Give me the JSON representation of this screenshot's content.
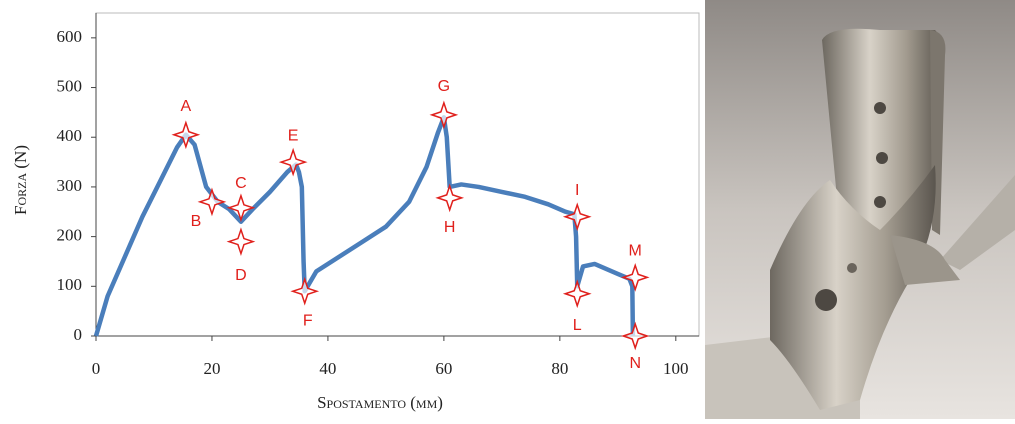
{
  "chart_data": {
    "type": "line",
    "xlabel": "Spostamento (mm)",
    "ylabel": "Forza (N)",
    "xlim": [
      0,
      104
    ],
    "ylim": [
      0,
      650
    ],
    "xticks": [
      0,
      20,
      40,
      60,
      80,
      100
    ],
    "yticks": [
      0,
      100,
      200,
      300,
      400,
      500,
      600
    ],
    "series": [
      {
        "color": "#4a7ebb",
        "x": [
          0,
          2,
          5,
          8,
          11,
          14,
          15.5,
          17,
          19,
          21,
          23,
          25,
          27,
          30,
          33,
          34.5,
          35,
          35.5,
          35.8,
          36,
          38,
          42,
          46,
          50,
          54,
          57,
          59,
          60,
          60.5,
          61,
          63,
          66,
          70,
          74,
          78,
          81,
          82.5,
          82.8,
          83,
          84,
          86,
          88,
          90,
          92,
          92.5,
          92.6
        ],
        "values": [
          0,
          80,
          160,
          240,
          310,
          380,
          405,
          385,
          300,
          270,
          255,
          230,
          255,
          290,
          330,
          345,
          330,
          300,
          150,
          90,
          130,
          160,
          190,
          220,
          270,
          340,
          410,
          440,
          400,
          300,
          305,
          300,
          290,
          280,
          265,
          250,
          245,
          200,
          100,
          140,
          145,
          135,
          125,
          115,
          100,
          0
        ]
      }
    ],
    "points": {
      "color": "#e0201c",
      "labels": [
        "A",
        "B",
        "C",
        "D",
        "E",
        "F",
        "G",
        "H",
        "I",
        "L",
        "M",
        "N"
      ],
      "x": [
        15.5,
        20,
        25,
        25,
        34,
        36,
        60,
        61,
        83,
        83,
        93,
        93
      ],
      "y": [
        405,
        270,
        258,
        190,
        350,
        90,
        445,
        278,
        240,
        85,
        118,
        0
      ]
    }
  }
}
